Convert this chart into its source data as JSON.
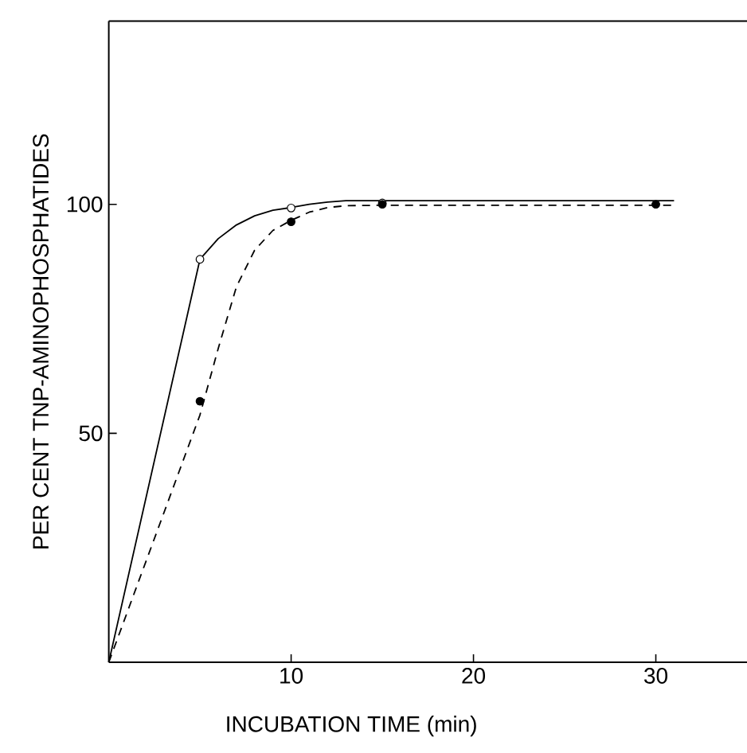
{
  "chart_data": {
    "type": "line",
    "xlabel": "INCUBATION TIME (min)",
    "ylabel": "PER CENT TNP-AMINOPHOSPHATIDES",
    "xlim": [
      0,
      35
    ],
    "ylim": [
      0,
      140
    ],
    "xticks": [
      10,
      20,
      30
    ],
    "yticks": [
      50,
      100
    ],
    "series": [
      {
        "color": "#000000",
        "line_style": "solid",
        "marker": "none",
        "x": [
          0,
          5,
          6,
          7,
          8,
          9,
          10,
          11,
          12,
          13,
          15,
          20,
          31
        ],
        "values": [
          0,
          88,
          92.5,
          95.5,
          97.5,
          98.7,
          99.3,
          100,
          100.5,
          100.8,
          100.8,
          100.8,
          100.8
        ]
      },
      {
        "color": "#000000",
        "line_style": "dashed",
        "marker": "none",
        "x": [
          0,
          5,
          6,
          7,
          8,
          9,
          10,
          11,
          12,
          13,
          15,
          20,
          31
        ],
        "values": [
          0,
          54,
          68.5,
          82,
          90,
          94.3,
          96.5,
          98.3,
          99.3,
          99.7,
          99.8,
          99.8,
          99.8
        ]
      },
      {
        "type": "scatter",
        "color": "#ffffff",
        "marker": "circle",
        "x": [
          5,
          10,
          15
        ],
        "values": [
          88,
          99.2,
          100.3
        ]
      },
      {
        "type": "scatter",
        "color": "#000000",
        "marker": "circle",
        "x": [
          5,
          10,
          15,
          30
        ],
        "values": [
          57,
          96.2,
          100,
          100
        ]
      }
    ]
  }
}
